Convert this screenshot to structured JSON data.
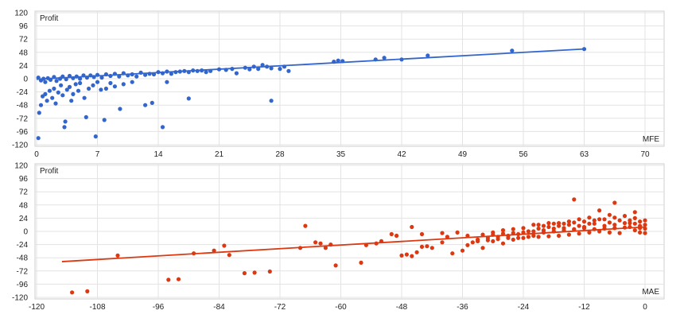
{
  "chart_data": [
    {
      "type": "scatter",
      "name": "mfe-chart",
      "ylabel": "Profit",
      "xlabel": "MFE",
      "xlim": [
        0,
        70
      ],
      "ylim": [
        -120,
        120
      ],
      "xticks": [
        0,
        7,
        14,
        21,
        28,
        35,
        42,
        49,
        56,
        63,
        70
      ],
      "yticks": [
        120,
        96,
        72,
        48,
        24,
        0,
        -24,
        -48,
        -72,
        -96,
        -120
      ],
      "grid": true,
      "color": "#3366cc",
      "trendline": {
        "x": [
          0,
          63
        ],
        "y": [
          -1,
          54
        ]
      },
      "series": [
        {
          "points": [
            [
              0.2,
              -108
            ],
            [
              0.3,
              -62
            ],
            [
              0.5,
              -48
            ],
            [
              0.7,
              -32
            ],
            [
              1.0,
              -28
            ],
            [
              1.2,
              -40
            ],
            [
              1.5,
              -22
            ],
            [
              1.8,
              -35
            ],
            [
              2.0,
              -18
            ],
            [
              2.2,
              -45
            ],
            [
              2.5,
              -25
            ],
            [
              2.8,
              -12
            ],
            [
              3.0,
              -30
            ],
            [
              3.2,
              -88
            ],
            [
              3.3,
              -78
            ],
            [
              3.5,
              -20
            ],
            [
              3.8,
              -15
            ],
            [
              4.0,
              -40
            ],
            [
              4.2,
              -28
            ],
            [
              4.5,
              -10
            ],
            [
              4.8,
              -22
            ],
            [
              5.0,
              -8
            ],
            [
              5.5,
              -35
            ],
            [
              5.7,
              -70
            ],
            [
              6.0,
              -18
            ],
            [
              6.5,
              -12
            ],
            [
              6.8,
              -105
            ],
            [
              7.0,
              -6
            ],
            [
              7.4,
              -20
            ],
            [
              7.8,
              -75
            ],
            [
              8.0,
              -18
            ],
            [
              8.5,
              -8
            ],
            [
              9.0,
              -14
            ],
            [
              9.6,
              -55
            ],
            [
              10.0,
              -10
            ],
            [
              11.0,
              -6
            ],
            [
              12.5,
              -48
            ],
            [
              13.3,
              -44
            ],
            [
              14.5,
              -88
            ],
            [
              15.0,
              -6
            ],
            [
              17.5,
              -36
            ],
            [
              27.0,
              -40
            ],
            [
              0.2,
              2
            ],
            [
              0.5,
              -3
            ],
            [
              0.8,
              0
            ],
            [
              1.0,
              -6
            ],
            [
              1.3,
              1
            ],
            [
              1.6,
              -2
            ],
            [
              2.0,
              3
            ],
            [
              2.3,
              -4
            ],
            [
              2.7,
              0
            ],
            [
              3.0,
              4
            ],
            [
              3.4,
              -1
            ],
            [
              3.8,
              5
            ],
            [
              4.2,
              1
            ],
            [
              4.6,
              4
            ],
            [
              5.0,
              0
            ],
            [
              5.4,
              6
            ],
            [
              5.8,
              2
            ],
            [
              6.2,
              6
            ],
            [
              6.6,
              3
            ],
            [
              7.0,
              7
            ],
            [
              7.5,
              2
            ],
            [
              8.0,
              8
            ],
            [
              8.5,
              5
            ],
            [
              9.0,
              9
            ],
            [
              9.5,
              4
            ],
            [
              10.0,
              10
            ],
            [
              10.5,
              6
            ],
            [
              11.0,
              8
            ],
            [
              11.5,
              4
            ],
            [
              12.0,
              11
            ],
            [
              12.5,
              7
            ],
            [
              13.0,
              9
            ],
            [
              13.5,
              8
            ],
            [
              14.0,
              12
            ],
            [
              14.5,
              10
            ],
            [
              15.0,
              13
            ],
            [
              15.5,
              9
            ],
            [
              16.0,
              12
            ],
            [
              16.5,
              13
            ],
            [
              17.0,
              14
            ],
            [
              17.5,
              12
            ],
            [
              18.0,
              15
            ],
            [
              18.5,
              14
            ],
            [
              19.0,
              15
            ],
            [
              19.5,
              12
            ],
            [
              20.0,
              14
            ],
            [
              21.0,
              17
            ],
            [
              21.8,
              16
            ],
            [
              22.5,
              18
            ],
            [
              23.0,
              10
            ],
            [
              24.0,
              20
            ],
            [
              24.5,
              17
            ],
            [
              25.0,
              22
            ],
            [
              25.5,
              18
            ],
            [
              26.0,
              25
            ],
            [
              26.5,
              22
            ],
            [
              27.0,
              19
            ],
            [
              28.0,
              18
            ],
            [
              28.5,
              22
            ],
            [
              29.0,
              14
            ],
            [
              34.2,
              31
            ],
            [
              34.7,
              33
            ],
            [
              35.2,
              32
            ],
            [
              39.0,
              35
            ],
            [
              40.0,
              38
            ],
            [
              42.0,
              35
            ],
            [
              45.0,
              42
            ],
            [
              54.7,
              51
            ],
            [
              63.0,
              54
            ]
          ]
        }
      ]
    },
    {
      "type": "scatter",
      "name": "mae-chart",
      "ylabel": "Profit",
      "xlabel": "MAE",
      "xlim": [
        -120,
        0
      ],
      "ylim": [
        -120,
        120
      ],
      "xticks": [
        -120,
        -108,
        -96,
        -84,
        -72,
        -60,
        -48,
        -36,
        -24,
        -12,
        0
      ],
      "yticks": [
        120,
        96,
        72,
        48,
        24,
        0,
        -24,
        -48,
        -72,
        -96,
        -120
      ],
      "grid": true,
      "color": "#dc3912",
      "trendline": {
        "x": [
          -115,
          0
        ],
        "y": [
          -55,
          8
        ]
      },
      "series": [
        {
          "points": [
            [
              -113,
              -111
            ],
            [
              -110,
              -109
            ],
            [
              -104,
              -44
            ],
            [
              -94,
              -88
            ],
            [
              -92,
              -87
            ],
            [
              -89,
              -40
            ],
            [
              -85,
              -35
            ],
            [
              -83,
              -26
            ],
            [
              -82,
              -43
            ],
            [
              -79,
              -76
            ],
            [
              -77,
              -75
            ],
            [
              -74,
              -73
            ],
            [
              -68,
              -30
            ],
            [
              -67,
              10
            ],
            [
              -65,
              -20
            ],
            [
              -64,
              -22
            ],
            [
              -63,
              -30
            ],
            [
              -62,
              -24
            ],
            [
              -61,
              -62
            ],
            [
              -56,
              -57
            ],
            [
              -55,
              -25
            ],
            [
              -53,
              -22
            ],
            [
              -52,
              -18
            ],
            [
              -50,
              -5
            ],
            [
              -49,
              -8
            ],
            [
              -48,
              -44
            ],
            [
              -47,
              -42
            ],
            [
              -46,
              -45
            ],
            [
              -45,
              -38
            ],
            [
              -44,
              -28
            ],
            [
              -43,
              -27
            ],
            [
              -42,
              -30
            ],
            [
              -40,
              -20
            ],
            [
              -39,
              -10
            ],
            [
              -38,
              -40
            ],
            [
              -36,
              -35
            ],
            [
              -35,
              -25
            ],
            [
              -34,
              -20
            ],
            [
              -33,
              -15
            ],
            [
              -32,
              -30
            ],
            [
              -31,
              -12
            ],
            [
              -30,
              -18
            ],
            [
              -29,
              -10
            ],
            [
              -28,
              -22
            ],
            [
              -27,
              -8
            ],
            [
              -26,
              -15
            ],
            [
              -25,
              -5
            ],
            [
              -24,
              -12
            ],
            [
              -23,
              0
            ],
            [
              -22,
              -8
            ],
            [
              -21,
              5
            ],
            [
              -20,
              -2
            ],
            [
              -19,
              8
            ],
            [
              -18,
              0
            ],
            [
              -17,
              10
            ],
            [
              -16,
              2
            ],
            [
              -15,
              18
            ],
            [
              -14,
              58
            ],
            [
              -14,
              4
            ],
            [
              -13,
              22
            ],
            [
              -12,
              8
            ],
            [
              -11,
              25
            ],
            [
              -10,
              14
            ],
            [
              -9,
              38
            ],
            [
              -8,
              10
            ],
            [
              -7,
              30
            ],
            [
              -6,
              52
            ],
            [
              -6,
              12
            ],
            [
              -5,
              20
            ],
            [
              -4,
              28
            ],
            [
              -3,
              15
            ],
            [
              -2,
              35
            ],
            [
              -2,
              24
            ],
            [
              -1,
              10
            ],
            [
              -1,
              18
            ],
            [
              0,
              12
            ],
            [
              0,
              5
            ],
            [
              -46,
              8
            ],
            [
              -44,
              -5
            ],
            [
              -40,
              -3
            ],
            [
              -37,
              -2
            ],
            [
              -35,
              -8
            ],
            [
              -32,
              -6
            ],
            [
              -30,
              -2
            ],
            [
              -28,
              2
            ],
            [
              -26,
              4
            ],
            [
              -24,
              6
            ],
            [
              -22,
              12
            ],
            [
              -20,
              10
            ],
            [
              -18,
              14
            ],
            [
              -16,
              14
            ],
            [
              -14,
              16
            ],
            [
              -12,
              18
            ],
            [
              -10,
              20
            ],
            [
              -8,
              22
            ],
            [
              -6,
              25
            ],
            [
              -4,
              15
            ],
            [
              -3,
              8
            ],
            [
              -2,
              2
            ],
            [
              -1,
              -2
            ],
            [
              -9,
              0
            ],
            [
              -7,
              -2
            ],
            [
              -5,
              -3
            ],
            [
              -11,
              -2
            ],
            [
              -13,
              -4
            ],
            [
              -15,
              -6
            ],
            [
              -17,
              -8
            ],
            [
              -19,
              -9
            ],
            [
              -21,
              -10
            ],
            [
              -23,
              -10
            ],
            [
              -25,
              -12
            ],
            [
              -27,
              -12
            ],
            [
              -29,
              -14
            ],
            [
              -31,
              -16
            ],
            [
              -33,
              -18
            ],
            [
              -8,
              5
            ],
            [
              -6,
              6
            ],
            [
              -4,
              7
            ],
            [
              -10,
              4
            ],
            [
              -12,
              6
            ],
            [
              -14,
              3
            ],
            [
              -16,
              6
            ],
            [
              -18,
              5
            ],
            [
              -20,
              2
            ],
            [
              -22,
              0
            ],
            [
              -24,
              -2
            ],
            [
              -26,
              -3
            ],
            [
              -28,
              -4
            ],
            [
              -30,
              -6
            ],
            [
              -3,
              20
            ],
            [
              -2,
              14
            ],
            [
              -1,
              6
            ],
            [
              0,
              20
            ],
            [
              0,
              -3
            ],
            [
              -7,
              16
            ],
            [
              -9,
              22
            ],
            [
              -11,
              14
            ],
            [
              -13,
              10
            ],
            [
              -15,
              12
            ],
            [
              -17,
              15
            ],
            [
              -19,
              15
            ],
            [
              -21,
              12
            ]
          ]
        }
      ]
    }
  ]
}
